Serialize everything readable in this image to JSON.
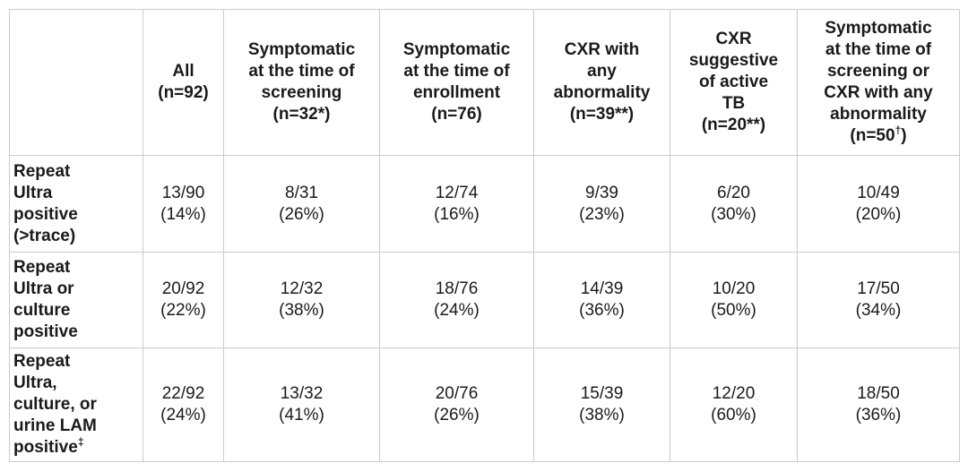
{
  "table": {
    "description": "Repeat TB test positivity by screening subgroup",
    "border_color": "#cbcbcb",
    "text_color": "#1a1a1a",
    "columns": [
      {
        "lines": [],
        "sup": "",
        "after": ""
      },
      {
        "lines": [
          "All",
          "(n=92)"
        ],
        "sup": "",
        "after": ""
      },
      {
        "lines": [
          "Symptomatic",
          "at the time of",
          "screening",
          "(n=32*)"
        ],
        "sup": "",
        "after": ""
      },
      {
        "lines": [
          "Symptomatic",
          "at the time of",
          "enrollment",
          "(n=76)"
        ],
        "sup": "",
        "after": ""
      },
      {
        "lines": [
          "CXR with",
          "any",
          "abnormality",
          "(n=39**)"
        ],
        "sup": "",
        "after": ""
      },
      {
        "lines": [
          "CXR",
          "suggestive",
          "of active",
          "TB",
          "(n=20**)"
        ],
        "sup": "",
        "after": ""
      },
      {
        "lines": [
          "Symptomatic",
          "at the time of",
          "screening or",
          "CXR with any",
          "abnormality",
          "(n=50"
        ],
        "sup": "†",
        "after": ")"
      }
    ],
    "rows": [
      {
        "label": {
          "lines": [
            "Repeat",
            "Ultra",
            "positive",
            "(>trace)"
          ],
          "sup": "",
          "after": ""
        },
        "cells": [
          {
            "frac": "13/90",
            "pct": "(14%)"
          },
          {
            "frac": "8/31",
            "pct": "(26%)"
          },
          {
            "frac": "12/74",
            "pct": "(16%)"
          },
          {
            "frac": "9/39",
            "pct": "(23%)"
          },
          {
            "frac": "6/20",
            "pct": "(30%)"
          },
          {
            "frac": "10/49",
            "pct": "(20%)"
          }
        ]
      },
      {
        "label": {
          "lines": [
            "Repeat",
            "Ultra or",
            "culture",
            "positive"
          ],
          "sup": "",
          "after": ""
        },
        "cells": [
          {
            "frac": "20/92",
            "pct": "(22%)"
          },
          {
            "frac": "12/32",
            "pct": "(38%)"
          },
          {
            "frac": "18/76",
            "pct": "(24%)"
          },
          {
            "frac": "14/39",
            "pct": "(36%)"
          },
          {
            "frac": "10/20",
            "pct": "(50%)"
          },
          {
            "frac": "17/50",
            "pct": "(34%)"
          }
        ]
      },
      {
        "label": {
          "lines": [
            "Repeat",
            "Ultra,",
            "culture, or",
            "urine LAM",
            "positive"
          ],
          "sup": "‡",
          "after": ""
        },
        "cells": [
          {
            "frac": "22/92",
            "pct": "(24%)"
          },
          {
            "frac": "13/32",
            "pct": "(41%)"
          },
          {
            "frac": "20/76",
            "pct": "(26%)"
          },
          {
            "frac": "15/39",
            "pct": "(38%)"
          },
          {
            "frac": "12/20",
            "pct": "(60%)"
          },
          {
            "frac": "18/50",
            "pct": "(36%)"
          }
        ]
      }
    ]
  }
}
